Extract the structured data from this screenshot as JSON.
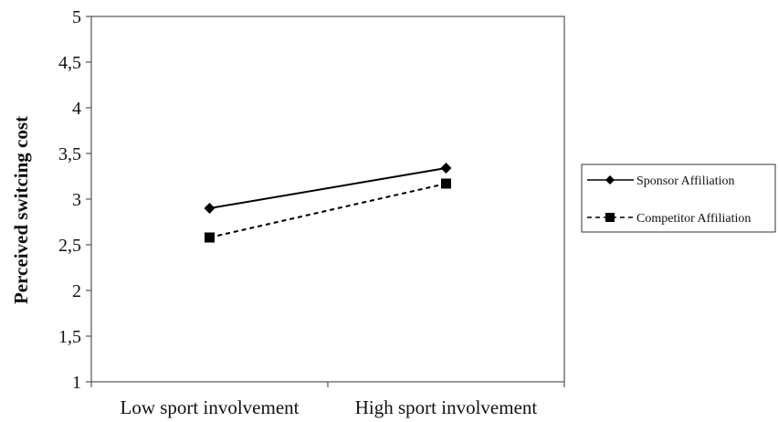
{
  "chart_data": {
    "type": "line",
    "categories": [
      "Low sport involvement",
      "High sport involvement"
    ],
    "ylabel": "Perceived switcing cost",
    "xlabel": "",
    "ylim": [
      1,
      5
    ],
    "yticks": [
      "1",
      "1,5",
      "2",
      "2,5",
      "3",
      "3,5",
      "4",
      "4,5",
      "5"
    ],
    "ytick_values": [
      1,
      1.5,
      2,
      2.5,
      3,
      3.5,
      4,
      4.5,
      5
    ],
    "grid": false,
    "legend_position": "right",
    "series": [
      {
        "name": "Sponsor Affiliation",
        "values": [
          2.9,
          3.34
        ],
        "marker": "diamond",
        "line": "solid",
        "color": "#000000"
      },
      {
        "name": "Competitor Affiliation",
        "values": [
          2.58,
          3.17
        ],
        "marker": "square",
        "line": "dashed",
        "color": "#000000"
      }
    ]
  }
}
